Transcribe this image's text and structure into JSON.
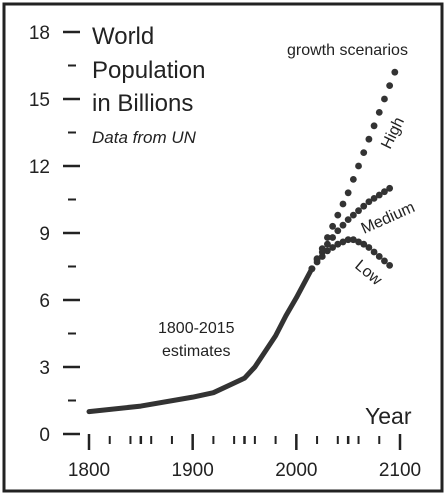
{
  "chart_data": {
    "type": "line",
    "title_lines": [
      "World",
      "Population",
      "in Billions"
    ],
    "subtitle": "Data from UN",
    "xlabel": "Year",
    "ylabel": "",
    "xlim": [
      1800,
      2100
    ],
    "ylim": [
      0,
      18
    ],
    "grid": false,
    "x_ticks": [
      1800,
      1850,
      1900,
      1950,
      2000,
      2050,
      2100
    ],
    "x_minor_ticks": [
      1820,
      1840,
      1860,
      1880,
      1920,
      1940,
      1960,
      1980,
      2020,
      2040,
      2060,
      2080
    ],
    "x_tick_labels": [
      "1800",
      "1900",
      "2000",
      "2100"
    ],
    "y_ticks": [
      0,
      1.5,
      3,
      4.5,
      6,
      7.5,
      9,
      10.5,
      12,
      13.5,
      15,
      16.5,
      18
    ],
    "y_tick_labels": [
      "0",
      "3",
      "6",
      "9",
      "12",
      "15",
      "18"
    ],
    "estimates_label_lines": [
      "1800-2015",
      "estimates"
    ],
    "scenarios_label": "growth scenarios",
    "series": [
      {
        "name": "estimates",
        "style": "solid",
        "x": [
          1800,
          1850,
          1900,
          1920,
          1950,
          1960,
          1970,
          1980,
          1990,
          2000,
          2015
        ],
        "y": [
          1.0,
          1.25,
          1.65,
          1.85,
          2.5,
          3.0,
          3.7,
          4.4,
          5.3,
          6.1,
          7.4
        ]
      },
      {
        "name": "High",
        "style": "dotted",
        "x": [
          2015,
          2020,
          2025,
          2030,
          2035,
          2040,
          2045,
          2050,
          2055,
          2060,
          2065,
          2070,
          2075,
          2080,
          2085,
          2090,
          2095
        ],
        "y": [
          7.4,
          7.85,
          8.3,
          8.8,
          9.3,
          9.8,
          10.3,
          10.8,
          11.4,
          12.0,
          12.6,
          13.2,
          13.8,
          14.4,
          15.0,
          15.6,
          16.2
        ]
      },
      {
        "name": "Medium",
        "style": "dotted",
        "x": [
          2015,
          2020,
          2025,
          2030,
          2035,
          2040,
          2045,
          2050,
          2055,
          2060,
          2065,
          2070,
          2075,
          2080,
          2085,
          2090
        ],
        "y": [
          7.4,
          7.8,
          8.15,
          8.5,
          8.8,
          9.1,
          9.35,
          9.6,
          9.8,
          10.0,
          10.2,
          10.4,
          10.55,
          10.7,
          10.85,
          11.0
        ]
      },
      {
        "name": "Low",
        "style": "dotted",
        "x": [
          2015,
          2020,
          2025,
          2030,
          2035,
          2040,
          2045,
          2050,
          2055,
          2060,
          2065,
          2070,
          2075,
          2080,
          2085,
          2090
        ],
        "y": [
          7.4,
          7.7,
          7.95,
          8.2,
          8.35,
          8.5,
          8.6,
          8.7,
          8.7,
          8.6,
          8.5,
          8.35,
          8.15,
          7.95,
          7.75,
          7.55
        ]
      }
    ]
  }
}
